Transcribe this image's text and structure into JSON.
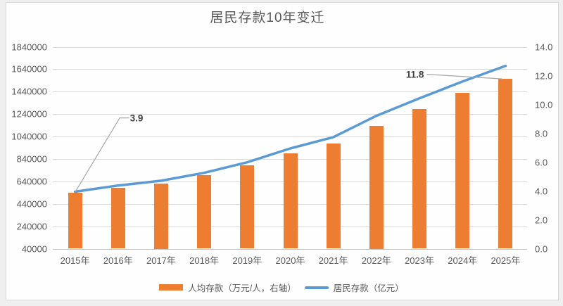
{
  "chart_data": {
    "type": "bar",
    "title": "居民存款10年变迁",
    "categories": [
      "2015年",
      "2016年",
      "2017年",
      "2018年",
      "2019年",
      "2020年",
      "2021年",
      "2022年",
      "2023年",
      "2024年",
      "2025年"
    ],
    "series": [
      {
        "name": "人均存款（万元/人，右轴）",
        "type": "bar",
        "axis": "right",
        "color": "#ED7D31",
        "values": [
          3.9,
          4.2,
          4.5,
          5.1,
          5.8,
          6.6,
          7.3,
          8.5,
          9.7,
          10.8,
          11.8
        ]
      },
      {
        "name": "居民存款（亿元）",
        "type": "line",
        "axis": "left",
        "color": "#5B9BD5",
        "values": [
          548000,
          603000,
          646000,
          716000,
          810000,
          934000,
          1035000,
          1225000,
          1381000,
          1530000,
          1670000
        ]
      }
    ],
    "left_axis": {
      "min": 40000,
      "max": 1840000,
      "step": 200000,
      "tick_labels": [
        "1840000",
        "1640000",
        "1440000",
        "1240000",
        "1040000",
        "840000",
        "640000",
        "440000",
        "240000",
        "40000"
      ]
    },
    "right_axis": {
      "min": 0,
      "max": 14,
      "step": 2,
      "tick_labels": [
        "14.0",
        "12.0",
        "10.0",
        "8.0",
        "6.0",
        "4.0",
        "2.0",
        "0.0"
      ]
    },
    "annotations": [
      {
        "text": "3.9",
        "target_series": 0,
        "target_index": 0
      },
      {
        "text": "11.8",
        "target_series": 0,
        "target_index": 10
      }
    ],
    "legend_position": "bottom",
    "grid": true,
    "colors": {
      "bar": "#ED7D31",
      "line": "#5B9BD5",
      "gridline": "#D9D9D9",
      "axis_text": "#595959",
      "annotation_text": "#404040",
      "annotation_line": "#A6A6A6"
    }
  }
}
